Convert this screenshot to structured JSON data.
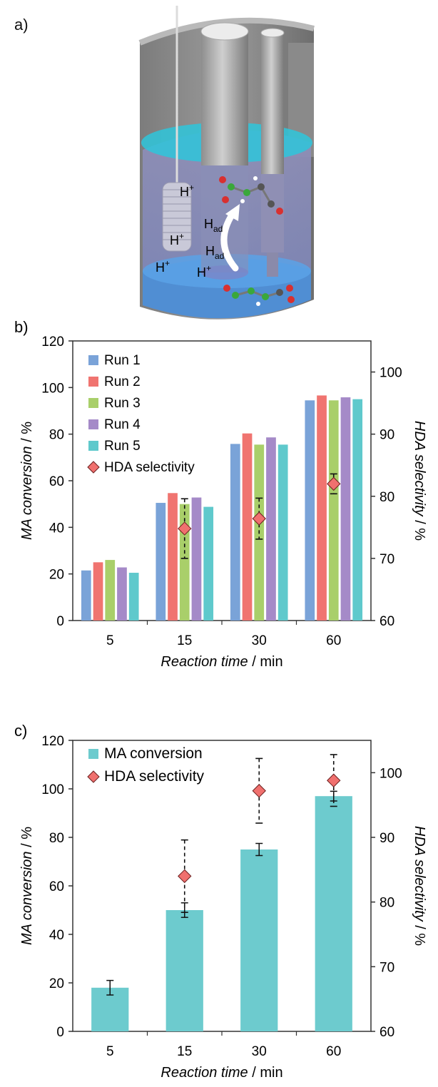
{
  "panel_a": {
    "label": "a)",
    "h_plus": "H",
    "plus_sup": "+",
    "h_ad": "H",
    "ad_sub": "ad"
  },
  "chart_data": [
    {
      "panel_label": "b)",
      "type": "bar",
      "categories": [
        "5",
        "15",
        "30",
        "60"
      ],
      "series": [
        {
          "name": "Run 1",
          "color": "#7aa3d8",
          "values": [
            21.5,
            50.5,
            75.8,
            94.5
          ]
        },
        {
          "name": "Run 2",
          "color": "#f07470",
          "values": [
            25.0,
            54.7,
            80.3,
            96.6
          ]
        },
        {
          "name": "Run 3",
          "color": "#a9cf6a",
          "values": [
            26.0,
            50.0,
            75.5,
            94.5
          ]
        },
        {
          "name": "Run 4",
          "color": "#a58ac8",
          "values": [
            22.8,
            52.8,
            78.6,
            95.8
          ]
        },
        {
          "name": "Run 5",
          "color": "#5fc9cc",
          "values": [
            20.5,
            48.8,
            75.5,
            95.0
          ]
        }
      ],
      "selectivity": {
        "name": "HDA selectivity",
        "color": "#f0706e",
        "values": [
          null,
          74.8,
          76.4,
          82.0
        ],
        "error": [
          null,
          4.8,
          3.3,
          1.6
        ],
        "error_style": "dashed"
      },
      "xlabel": "Reaction time",
      "xlabel_unit": " / min",
      "ylabel": "MA conversion",
      "ylabel_unit": " / %",
      "y2label": "HDA selectivity",
      "y2label_unit": " / %",
      "ylim": [
        0,
        120
      ],
      "yticks": [
        0,
        20,
        40,
        60,
        80,
        100,
        120
      ],
      "y2lim": [
        60,
        105
      ],
      "y2ticks": [
        60,
        70,
        80,
        90,
        100
      ],
      "legend_position": "top-left",
      "grid": false
    },
    {
      "panel_label": "c)",
      "type": "bar",
      "categories": [
        "5",
        "15",
        "30",
        "60"
      ],
      "series": [
        {
          "name": "MA conversion",
          "color": "#6dcbce",
          "values": [
            18.0,
            50.0,
            75.0,
            97.0
          ],
          "error": [
            3.0,
            3.0,
            2.5,
            2.0
          ]
        }
      ],
      "selectivity": {
        "name": "HDA selectivity",
        "color": "#f0706e",
        "values": [
          null,
          84.0,
          97.2,
          98.8
        ],
        "error": [
          null,
          5.6,
          5.0,
          4.0
        ],
        "error_style": "dashed"
      },
      "xlabel": "Reaction time",
      "xlabel_unit": " / min",
      "ylabel": "MA conversion",
      "ylabel_unit": " / %",
      "y2label": "HDA selectivity",
      "y2label_unit": " / %",
      "ylim": [
        0,
        120
      ],
      "yticks": [
        0,
        20,
        40,
        60,
        80,
        100,
        120
      ],
      "y2lim": [
        60,
        105
      ],
      "y2ticks": [
        60,
        70,
        80,
        90,
        100
      ],
      "legend_position": "top-left",
      "grid": false
    }
  ]
}
